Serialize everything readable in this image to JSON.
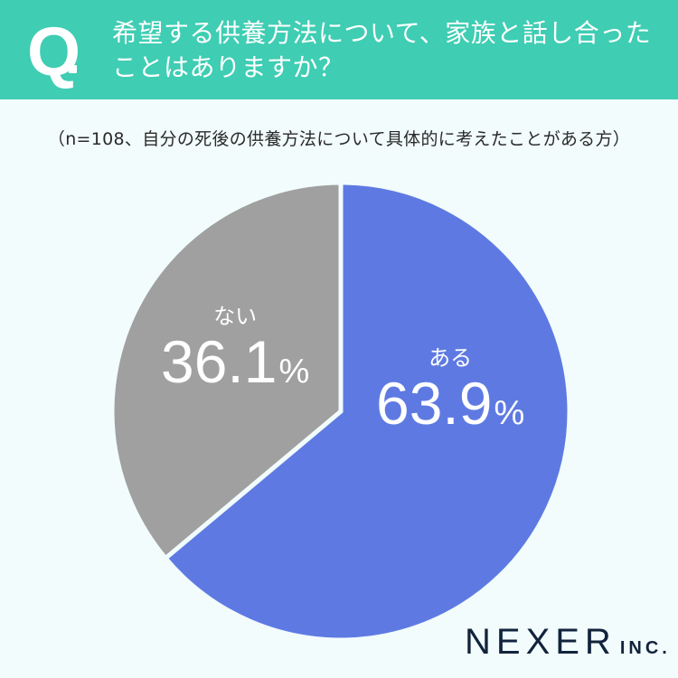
{
  "header": {
    "q_mark": "Q",
    "question_line1": "希望する供養方法について、家族と話し合った",
    "question_line2": "ことはありますか？",
    "background_color": "#3FCDB3"
  },
  "subtitle": "（n=108、自分の死後の供養方法について具体的に考えたことがある方）",
  "colors": {
    "background": "#F2FCFC",
    "aru": "#5E7AE2",
    "nai": "#A0A0A0",
    "separator": "#F2FCFC",
    "logo": "#12233D"
  },
  "chart_data": {
    "type": "pie",
    "title": "希望する供養方法について、家族と話し合ったことはありますか？",
    "subtitle": "（n=108、自分の死後の供養方法について具体的に考えたことがある方）",
    "n": 108,
    "categories": [
      "ある",
      "ない"
    ],
    "values": [
      63.9,
      36.1
    ],
    "unit": "%",
    "start_angle": "12 o'clock, clockwise",
    "legend": "none (labels inside slices)"
  },
  "labels": {
    "aru": {
      "name": "ある",
      "value": "63.9",
      "unit": "%"
    },
    "nai": {
      "name": "ない",
      "value": "36.1",
      "unit": "%"
    }
  },
  "logo": {
    "main": "NEXER",
    "suffix": "INC."
  }
}
